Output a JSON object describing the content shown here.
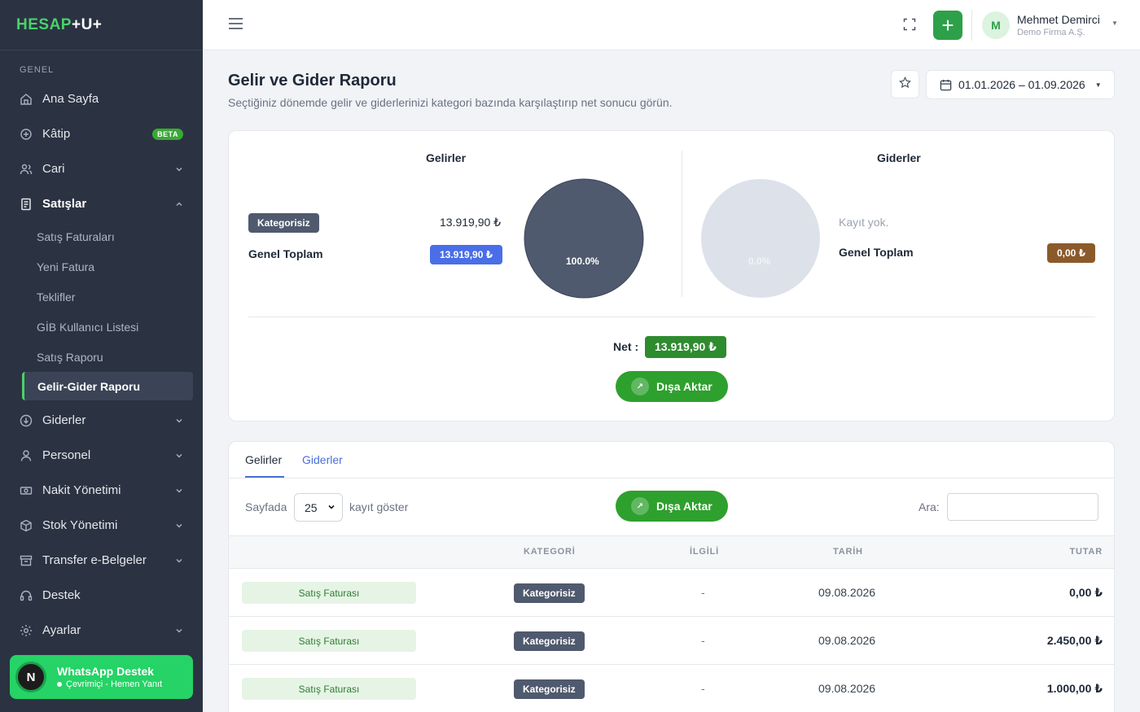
{
  "app": {
    "logo_a": "HESAP",
    "logo_b": "+U+"
  },
  "sidebar": {
    "section": "GENEL",
    "items": [
      {
        "label": "Ana Sayfa",
        "icon": "home-icon",
        "chevron": false
      },
      {
        "label": "Kâtip",
        "icon": "ai-icon",
        "badge": "BETA",
        "chevron": false
      },
      {
        "label": "Cari",
        "icon": "users-icon",
        "chevron": true
      },
      {
        "label": "Satışlar",
        "icon": "document-icon",
        "chevron": true,
        "expanded": true
      },
      {
        "label": "Giderler",
        "icon": "download-circle-icon",
        "chevron": true
      },
      {
        "label": "Personel",
        "icon": "person-icon",
        "chevron": true
      },
      {
        "label": "Nakit Yönetimi",
        "icon": "cash-icon",
        "chevron": true
      },
      {
        "label": "Stok Yönetimi",
        "icon": "box-icon",
        "chevron": true
      },
      {
        "label": "Transfer e-Belgeler",
        "icon": "archive-icon",
        "chevron": true
      },
      {
        "label": "Destek",
        "icon": "headset-icon",
        "chevron": false
      },
      {
        "label": "Ayarlar",
        "icon": "gear-icon",
        "chevron": true
      }
    ],
    "sales_sub": [
      "Satış Faturaları",
      "Yeni Fatura",
      "Teklifler",
      "GİB Kullanıcı Listesi",
      "Satış Raporu",
      "Gelir-Gider Raporu"
    ],
    "whatsapp": {
      "avatar": "N",
      "title": "WhatsApp Destek",
      "status": "Çevrimiçi - Hemen Yanıt"
    }
  },
  "topbar": {
    "user_initial": "M",
    "user_name": "Mehmet Demirci",
    "company": "Demo Firma A.Ş."
  },
  "page": {
    "title": "Gelir ve Gider Raporu",
    "subtitle": "Seçtiğiniz dönemde gelir ve giderlerinizi kategori bazında karşılaştırıp net sonucu görün.",
    "date_range": "01.01.2026 – 01.09.2026"
  },
  "summary": {
    "income": {
      "title": "Gelirler",
      "category": "Kategorisiz",
      "category_amount": "13.919,90 ₺",
      "total_label": "Genel Toplam",
      "total": "13.919,90 ₺",
      "pie_percent": "100.0%",
      "pie_color": "#505a6e"
    },
    "expense": {
      "title": "Giderler",
      "empty": "Kayıt yok.",
      "total_label": "Genel Toplam",
      "total": "0,00 ₺",
      "pie_percent": "0.0%",
      "pie_color": "#dde1ea"
    },
    "net_label": "Net :",
    "net": "13.919,90 ₺",
    "export": "Dışa Aktar"
  },
  "table": {
    "tabs": [
      "Gelirler",
      "Giderler"
    ],
    "show_prefix": "Sayfada",
    "page_size": "25",
    "show_suffix": "kayıt göster",
    "export": "Dışa Aktar",
    "search_label": "Ara:",
    "search_value": "",
    "headers": {
      "category": "KATEGORİ",
      "related": "İLGİLİ",
      "date": "TARİH",
      "amount": "TUTAR"
    },
    "rows": [
      {
        "type": "Satış Faturası",
        "category": "Kategorisiz",
        "related": "-",
        "date": "09.08.2026",
        "amount": "0,00 ₺"
      },
      {
        "type": "Satış Faturası",
        "category": "Kategorisiz",
        "related": "-",
        "date": "09.08.2026",
        "amount": "2.450,00 ₺"
      },
      {
        "type": "Satış Faturası",
        "category": "Kategorisiz",
        "related": "-",
        "date": "09.08.2026",
        "amount": "1.000,00 ₺"
      }
    ]
  }
}
